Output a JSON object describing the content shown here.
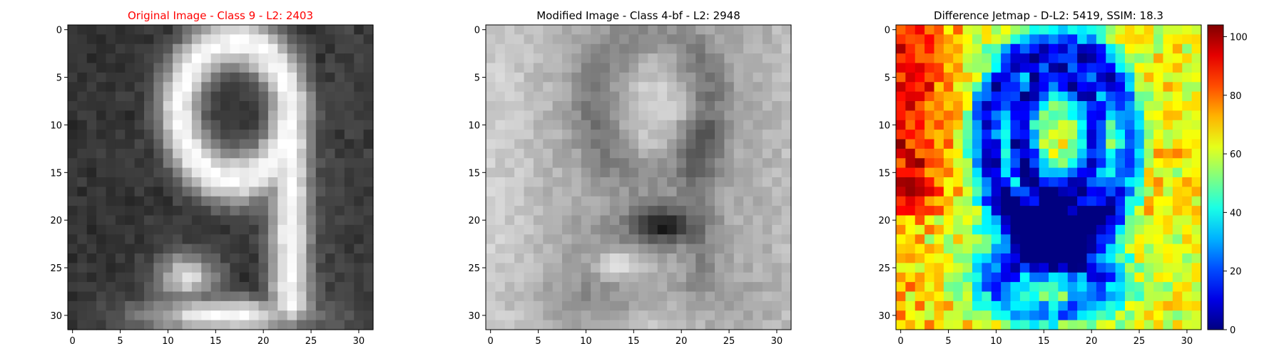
{
  "chart_data": [
    {
      "type": "heatmap",
      "title": "Original Image - Class 9 - L2: 2403",
      "title_color": "#ff0000",
      "colormap": "gray",
      "image_size": [
        32,
        32
      ],
      "xticks": [
        0,
        5,
        10,
        15,
        20,
        25,
        30
      ],
      "yticks": [
        0,
        5,
        10,
        15,
        20,
        25,
        30
      ],
      "xlim": [
        -0.5,
        31.5
      ],
      "ylim": [
        31.5,
        -0.5
      ],
      "value_range": [
        0,
        255
      ]
    },
    {
      "type": "heatmap",
      "title": "Modified Image - Class 4-bf - L2: 2948",
      "title_color": "#000000",
      "colormap": "gray",
      "image_size": [
        32,
        32
      ],
      "xticks": [
        0,
        5,
        10,
        15,
        20,
        25,
        30
      ],
      "yticks": [
        0,
        5,
        10,
        15,
        20,
        25,
        30
      ],
      "xlim": [
        -0.5,
        31.5
      ],
      "ylim": [
        31.5,
        -0.5
      ],
      "value_range": [
        0,
        255
      ]
    },
    {
      "type": "heatmap",
      "title": "Difference Jetmap - D-L2: 5419, SSIM: 18.3",
      "title_color": "#000000",
      "colormap": "jet",
      "image_size": [
        32,
        32
      ],
      "xticks": [
        0,
        5,
        10,
        15,
        20,
        25,
        30
      ],
      "yticks": [
        0,
        5,
        10,
        15,
        20,
        25,
        30
      ],
      "xlim": [
        -0.5,
        31.5
      ],
      "ylim": [
        31.5,
        -0.5
      ],
      "value_range": [
        0,
        104
      ],
      "colorbar": {
        "ticks": [
          0,
          20,
          40,
          60,
          80,
          100
        ],
        "range": [
          0,
          104
        ]
      }
    }
  ]
}
